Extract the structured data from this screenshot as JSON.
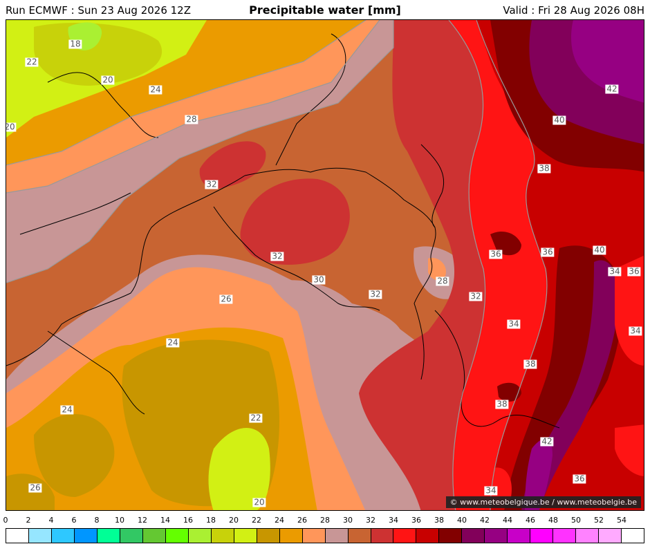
{
  "header": {
    "run": "Run ECMWF : Sun 23 Aug 2026 12Z",
    "title": "Precipitable water [mm]",
    "valid": "Valid : Fri 28 Aug 2026 08H"
  },
  "credit": "© www.meteobelgique.be / www.meteobelgie.be",
  "contour_labels": [
    {
      "text": "18"
    },
    {
      "text": "22"
    },
    {
      "text": "20"
    },
    {
      "text": "24"
    },
    {
      "text": "20"
    },
    {
      "text": "28"
    },
    {
      "text": "32"
    },
    {
      "text": "32"
    },
    {
      "text": "30"
    },
    {
      "text": "26"
    },
    {
      "text": "32"
    },
    {
      "text": "28"
    },
    {
      "text": "32"
    },
    {
      "text": "24"
    },
    {
      "text": "24"
    },
    {
      "text": "22"
    },
    {
      "text": "26"
    },
    {
      "text": "20"
    },
    {
      "text": "36"
    },
    {
      "text": "34"
    },
    {
      "text": "38"
    },
    {
      "text": "38"
    },
    {
      "text": "34"
    },
    {
      "text": "42"
    },
    {
      "text": "40"
    },
    {
      "text": "38"
    },
    {
      "text": "36"
    },
    {
      "text": "40"
    },
    {
      "text": "34"
    },
    {
      "text": "36"
    },
    {
      "text": "42"
    },
    {
      "text": "36"
    },
    {
      "text": "34"
    }
  ],
  "scale": {
    "ticks": [
      "0",
      "2",
      "4",
      "6",
      "8",
      "10",
      "12",
      "14",
      "16",
      "18",
      "20",
      "22",
      "24",
      "26",
      "28",
      "30",
      "32",
      "34",
      "36",
      "38",
      "40",
      "42",
      "44",
      "46",
      "48",
      "50",
      "52",
      "54"
    ],
    "colors": [
      "#ffffff",
      "#96e6ff",
      "#2ec8ff",
      "#0096ff",
      "#00ff96",
      "#32c864",
      "#64c832",
      "#64ff00",
      "#aaf032",
      "#c8d20a",
      "#d2f014",
      "#c89600",
      "#eb9b00",
      "#ff965a",
      "#c89696",
      "#c86432",
      "#cd3232",
      "#ff1414",
      "#c80000",
      "#820000",
      "#82005a",
      "#960082",
      "#c800c8",
      "#ff00ff",
      "#ff32ff",
      "#ff82ff",
      "#ffaaff",
      "#ffffff"
    ]
  }
}
